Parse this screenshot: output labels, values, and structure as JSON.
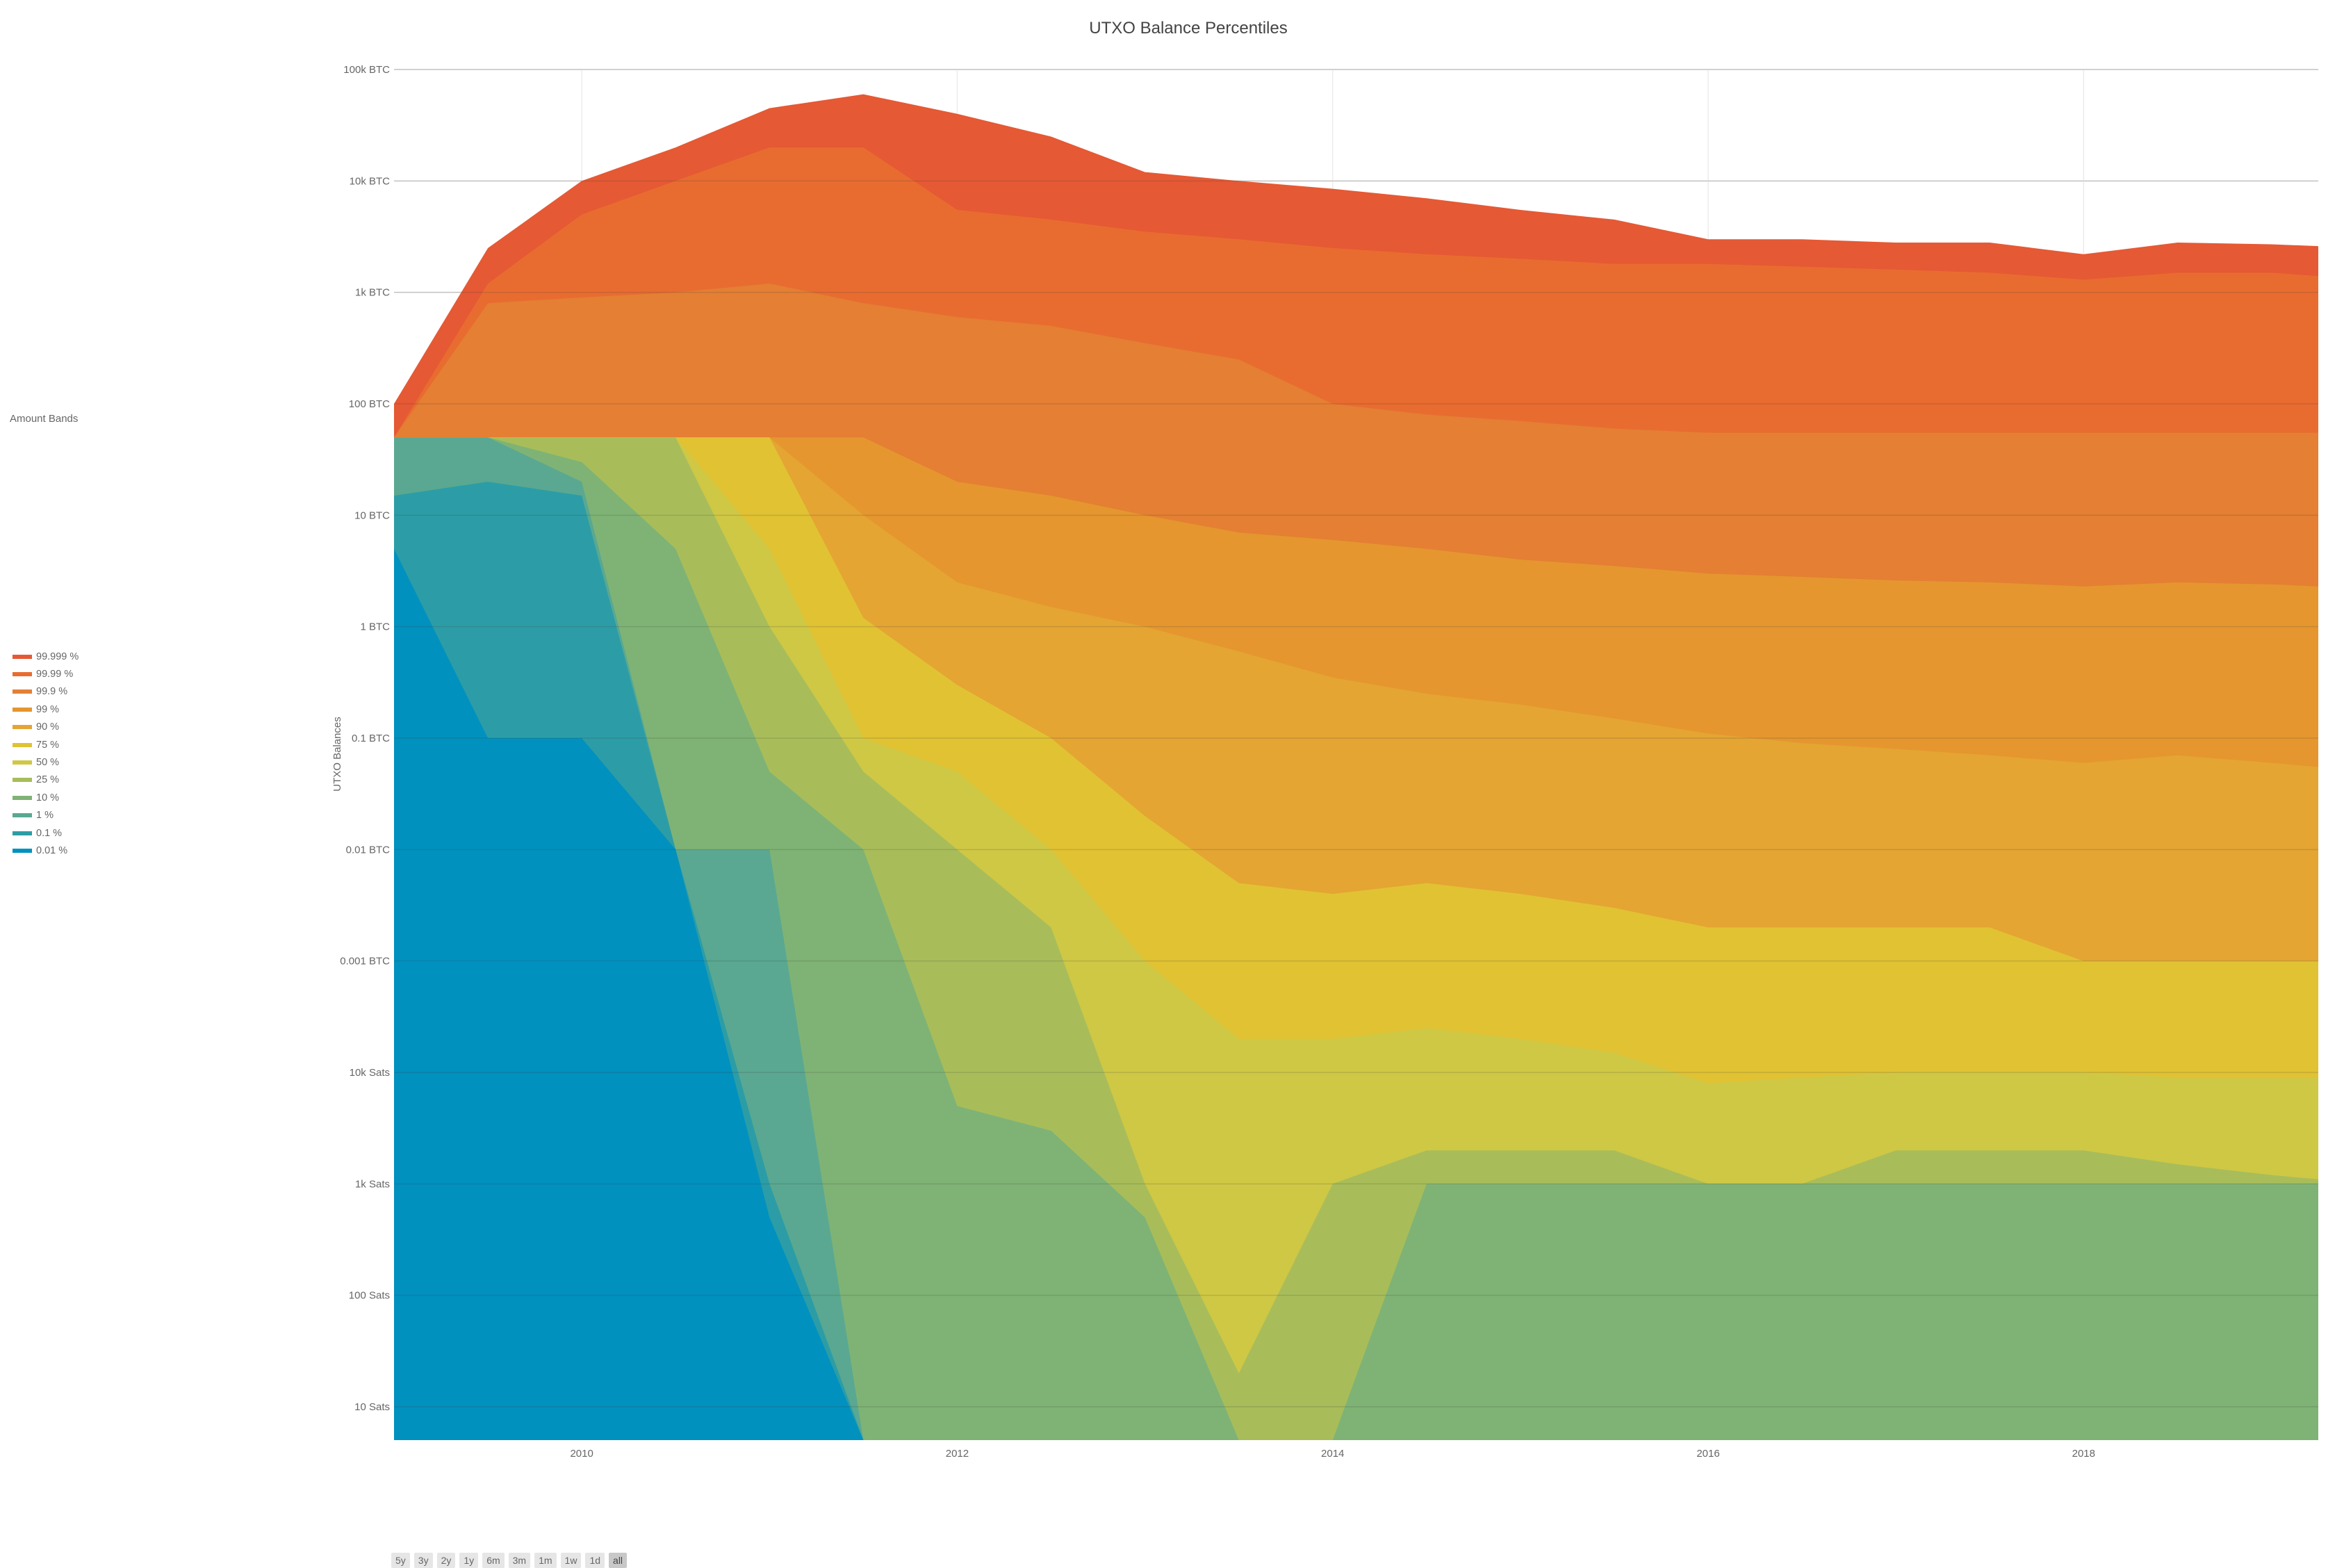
{
  "chart_data": {
    "type": "area",
    "title": "UTXO Balance Percentiles",
    "ylabel": "UTXO Balances",
    "yscale": "log",
    "xlim": [
      2009.0,
      2019.25
    ],
    "ylim_btc": [
      4e-08,
      100000
    ],
    "legend_title": "Amount Bands",
    "legend_position": "left",
    "grid": true,
    "y_ticks": [
      {
        "value": 100000,
        "label": "100k BTC"
      },
      {
        "value": 10000,
        "label": "10k BTC"
      },
      {
        "value": 1000,
        "label": "1k BTC"
      },
      {
        "value": 100,
        "label": "100 BTC"
      },
      {
        "value": 10,
        "label": "10 BTC"
      },
      {
        "value": 1,
        "label": "1 BTC"
      },
      {
        "value": 0.1,
        "label": "0.1 BTC"
      },
      {
        "value": 0.01,
        "label": "0.01 BTC"
      },
      {
        "value": 0.001,
        "label": "0.001 BTC"
      },
      {
        "value": 0.0001,
        "label": "10k Sats"
      },
      {
        "value": 1e-05,
        "label": "1k Sats"
      },
      {
        "value": 1e-06,
        "label": "100 Sats"
      },
      {
        "value": 1e-07,
        "label": "10 Sats"
      }
    ],
    "x_ticks": [
      {
        "value": 2010,
        "label": "2010"
      },
      {
        "value": 2012,
        "label": "2012"
      },
      {
        "value": 2014,
        "label": "2014"
      },
      {
        "value": 2016,
        "label": "2016"
      },
      {
        "value": 2018,
        "label": "2018"
      }
    ],
    "x": [
      2009.0,
      2009.5,
      2010.0,
      2010.5,
      2011.0,
      2011.5,
      2012.0,
      2012.5,
      2013.0,
      2013.5,
      2014.0,
      2014.5,
      2015.0,
      2015.5,
      2016.0,
      2016.5,
      2017.0,
      2017.5,
      2018.0,
      2018.5,
      2019.0,
      2019.25
    ],
    "series": [
      {
        "name": "99.999 %",
        "color": "#e55934",
        "values": [
          100,
          2500,
          10000,
          20000,
          45000,
          60000,
          40000,
          25000,
          12000,
          10000,
          8500,
          7000,
          5500,
          4500,
          3000,
          3000,
          2800,
          2800,
          2200,
          2800,
          2700,
          2600
        ]
      },
      {
        "name": "99.99 %",
        "color": "#e86c30",
        "values": [
          50,
          1200,
          5000,
          10000,
          20000,
          20000,
          5500,
          4500,
          3500,
          3000,
          2500,
          2200,
          2000,
          1800,
          1800,
          1700,
          1600,
          1500,
          1300,
          1500,
          1500,
          1400
        ]
      },
      {
        "name": "99.9 %",
        "color": "#e47f33",
        "values": [
          50,
          800,
          900,
          1000,
          1200,
          800,
          600,
          500,
          350,
          250,
          100,
          80,
          70,
          60,
          55,
          55,
          55,
          55,
          55,
          55,
          55,
          55
        ]
      },
      {
        "name": "99 %",
        "color": "#e5962f",
        "values": [
          50,
          50,
          50,
          50,
          50,
          50,
          20,
          15,
          10,
          7,
          6,
          5,
          4,
          3.5,
          3,
          2.8,
          2.6,
          2.5,
          2.3,
          2.5,
          2.4,
          2.3
        ]
      },
      {
        "name": "90 %",
        "color": "#e4a533",
        "values": [
          50,
          50,
          50,
          50,
          50,
          10,
          2.5,
          1.5,
          1,
          0.6,
          0.35,
          0.25,
          0.2,
          0.15,
          0.11,
          0.09,
          0.08,
          0.07,
          0.06,
          0.07,
          0.06,
          0.055
        ]
      },
      {
        "name": "75 %",
        "color": "#e1c233",
        "values": [
          50,
          50,
          50,
          50,
          50,
          1.2,
          0.3,
          0.1,
          0.02,
          0.005,
          0.004,
          0.005,
          0.004,
          0.003,
          0.002,
          0.002,
          0.002,
          0.002,
          0.001,
          0.001,
          0.001,
          0.001
        ]
      },
      {
        "name": "50 %",
        "color": "#cfc845",
        "values": [
          50,
          50,
          50,
          50,
          5,
          0.1,
          0.05,
          0.01,
          0.001,
          0.0002,
          0.0002,
          0.00025,
          0.0002,
          0.00015,
          8e-05,
          9e-05,
          0.0001,
          0.0001,
          0.0001,
          9e-05,
          9e-05,
          9e-05
        ]
      },
      {
        "name": "25 %",
        "color": "#a8bd5a",
        "values": [
          50,
          50,
          50,
          50,
          1,
          0.05,
          0.01,
          0.002,
          1e-05,
          2e-07,
          1e-05,
          2e-05,
          2e-05,
          2e-05,
          1e-05,
          1e-05,
          2e-05,
          2e-05,
          2e-05,
          1.5e-05,
          1.2e-05,
          1.1e-05
        ]
      },
      {
        "name": "10 %",
        "color": "#7fb375",
        "values": [
          50,
          50,
          30,
          5,
          0.05,
          0.01,
          5e-05,
          3e-05,
          5e-06,
          5e-08,
          5e-08,
          1e-05,
          1e-05,
          1e-05,
          1e-05,
          1e-05,
          1e-05,
          1e-05,
          1e-05,
          1e-05,
          1e-05,
          1e-05
        ]
      },
      {
        "name": "1 %",
        "color": "#5aa891",
        "values": [
          50,
          50,
          20,
          0.01,
          0.01,
          5e-08,
          5e-08,
          5e-08,
          5e-08,
          5e-08,
          5e-08,
          5e-08,
          5e-08,
          5e-08,
          5e-08,
          5e-08,
          5e-08,
          5e-08,
          5e-08,
          5e-08,
          5e-08,
          5e-08
        ]
      },
      {
        "name": "0.1 %",
        "color": "#2c9da6",
        "values": [
          15,
          20,
          15,
          0.01,
          1e-05,
          5e-08,
          5e-08,
          5e-08,
          5e-08,
          5e-08,
          5e-08,
          5e-08,
          5e-08,
          5e-08,
          5e-08,
          5e-08,
          5e-08,
          5e-08,
          5e-08,
          5e-08,
          5e-08,
          5e-08
        ]
      },
      {
        "name": "0.01 %",
        "color": "#0091bf",
        "values": [
          5,
          0.1,
          0.1,
          0.01,
          5e-06,
          5e-08,
          5e-08,
          5e-08,
          5e-08,
          5e-08,
          5e-08,
          5e-08,
          5e-08,
          5e-08,
          5e-08,
          5e-08,
          5e-08,
          5e-08,
          5e-08,
          5e-08,
          5e-08,
          5e-08
        ]
      }
    ]
  },
  "range_buttons": [
    {
      "label": "5y",
      "active": false
    },
    {
      "label": "3y",
      "active": false
    },
    {
      "label": "2y",
      "active": false
    },
    {
      "label": "1y",
      "active": false
    },
    {
      "label": "6m",
      "active": false
    },
    {
      "label": "3m",
      "active": false
    },
    {
      "label": "1m",
      "active": false
    },
    {
      "label": "1w",
      "active": false
    },
    {
      "label": "1d",
      "active": false
    },
    {
      "label": "all",
      "active": true
    }
  ]
}
